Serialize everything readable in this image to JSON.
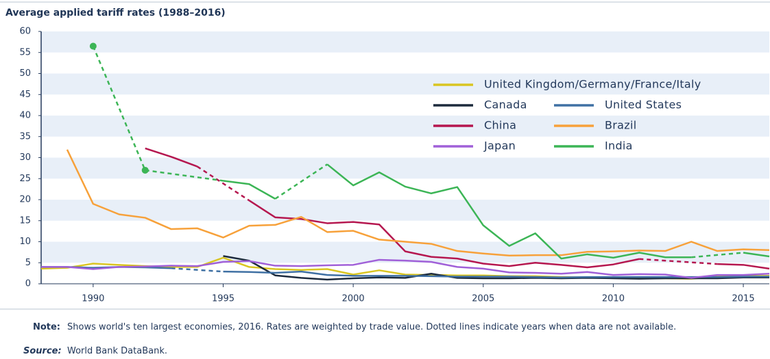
{
  "chart_data": {
    "type": "line",
    "title": "Average applied tariff rates (1988–2016)",
    "x": [
      1988,
      1989,
      1990,
      1991,
      1992,
      1993,
      1994,
      1995,
      1996,
      1997,
      1998,
      1999,
      2000,
      2001,
      2002,
      2003,
      2004,
      2005,
      2006,
      2007,
      2008,
      2009,
      2010,
      2011,
      2012,
      2013,
      2014,
      2015,
      2016
    ],
    "xlim": [
      1988,
      2016
    ],
    "xticks": [
      1990,
      1995,
      2000,
      2005,
      2010,
      2015
    ],
    "ylim": [
      0,
      60
    ],
    "yticks": [
      0,
      5,
      10,
      15,
      20,
      25,
      30,
      35,
      40,
      45,
      50,
      55,
      60
    ],
    "grid": true,
    "series": [
      {
        "name": "United Kingdom/Germany/France/Italy",
        "color": "#d9c521",
        "values": [
          3.6,
          3.8,
          4.8,
          4.5,
          4.2,
          4.0,
          4.0,
          6.2,
          4.0,
          3.5,
          3.3,
          3.5,
          2.2,
          3.2,
          2.2,
          2.1,
          2.0,
          2.0,
          1.8,
          1.8,
          1.6,
          1.5,
          1.4,
          1.3,
          1.3,
          1.2,
          1.7,
          1.8,
          1.9
        ]
      },
      {
        "name": "Canada",
        "color": "#1c2a3c",
        "values": [
          null,
          null,
          null,
          null,
          null,
          null,
          null,
          6.6,
          5.5,
          2.0,
          1.4,
          1.0,
          1.3,
          1.5,
          1.4,
          2.4,
          1.4,
          1.3,
          1.3,
          1.4,
          1.3,
          1.4,
          1.3,
          1.2,
          1.3,
          1.3,
          1.3,
          1.5,
          1.5
        ]
      },
      {
        "name": "United States",
        "color": "#3f70a3",
        "values": [
          4.0,
          4.0,
          3.8,
          4.0,
          3.9,
          3.7,
          null,
          2.9,
          2.8,
          2.6,
          2.9,
          2.1,
          1.9,
          1.9,
          1.9,
          1.8,
          1.7,
          1.7,
          1.7,
          1.6,
          1.5,
          1.6,
          1.6,
          1.6,
          1.6,
          1.6,
          1.6,
          1.7,
          1.7
        ]
      },
      {
        "name": "China",
        "color": "#b5174f",
        "values": [
          null,
          null,
          null,
          null,
          32.2,
          30.2,
          27.9,
          null,
          19.8,
          15.8,
          15.4,
          14.4,
          14.7,
          14.1,
          7.7,
          6.4,
          6.0,
          4.8,
          4.2,
          5.0,
          4.5,
          3.9,
          4.6,
          5.9,
          null,
          null,
          4.7,
          4.5,
          3.6
        ]
      },
      {
        "name": "Brazil",
        "color": "#f7a13a",
        "values": [
          null,
          31.9,
          19.0,
          16.5,
          15.7,
          13.0,
          13.2,
          11.0,
          13.8,
          14.0,
          15.9,
          12.3,
          12.6,
          10.5,
          10.0,
          9.5,
          7.8,
          7.2,
          6.7,
          6.8,
          6.8,
          7.6,
          7.7,
          7.9,
          7.8,
          10.0,
          7.8,
          8.2,
          8.0
        ]
      },
      {
        "name": "Japan",
        "color": "#a060d8",
        "values": [
          4.0,
          4.0,
          3.5,
          4.0,
          4.1,
          4.3,
          4.2,
          5.2,
          5.4,
          4.3,
          4.2,
          4.4,
          4.5,
          5.7,
          5.5,
          5.2,
          4.0,
          3.6,
          2.7,
          2.6,
          2.4,
          2.8,
          2.1,
          2.3,
          2.2,
          1.4,
          2.1,
          2.1,
          2.4
        ]
      },
      {
        "name": "India",
        "color": "#3cb556",
        "values": [
          null,
          null,
          56.5,
          null,
          27.0,
          null,
          null,
          24.5,
          23.7,
          20.2,
          null,
          28.4,
          23.4,
          26.5,
          23.1,
          21.5,
          23.0,
          13.9,
          9.0,
          12.0,
          6.0,
          7.0,
          6.2,
          7.4,
          6.3,
          6.3,
          null,
          7.4,
          6.5
        ]
      }
    ],
    "note": {
      "label": "Note:",
      "text": "Shows world's ten largest economies, 2016. Rates are weighted by trade value. Dotted lines indicate years when data are not available."
    },
    "source": {
      "label": "Source:",
      "text": "World Bank DataBank."
    }
  }
}
